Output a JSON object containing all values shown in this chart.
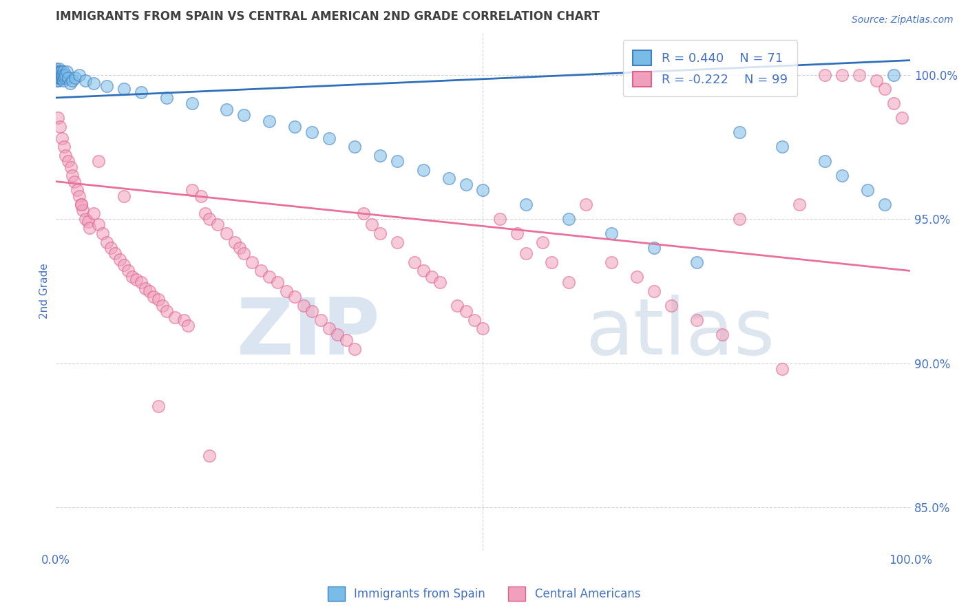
{
  "title": "IMMIGRANTS FROM SPAIN VS CENTRAL AMERICAN 2ND GRADE CORRELATION CHART",
  "source_text": "Source: ZipAtlas.com",
  "ylabel": "2nd Grade",
  "watermark_zip": "ZIP",
  "watermark_atlas": "atlas",
  "xmin": 0.0,
  "xmax": 100.0,
  "ymin": 83.5,
  "ymax": 101.5,
  "yticks": [
    85.0,
    90.0,
    95.0,
    100.0
  ],
  "ytick_labels": [
    "85.0%",
    "90.0%",
    "95.0%",
    "100.0%"
  ],
  "R_blue": 0.44,
  "N_blue": 71,
  "R_pink": -0.222,
  "N_pink": 99,
  "blue_color": "#7abce8",
  "pink_color": "#f0a0bb",
  "blue_edge_color": "#4080c0",
  "pink_edge_color": "#e06090",
  "blue_line_color": "#3070b8",
  "pink_line_color": "#e8709a",
  "axis_color": "#4472c4",
  "grid_color": "#c8c8c8",
  "title_color": "#404040",
  "background_color": "#ffffff",
  "legend_label_blue": "Immigrants from Spain",
  "legend_label_pink": "Central Americans",
  "blue_scatter_x": [
    0.05,
    0.08,
    0.1,
    0.12,
    0.15,
    0.18,
    0.2,
    0.22,
    0.25,
    0.28,
    0.3,
    0.33,
    0.35,
    0.38,
    0.4,
    0.42,
    0.45,
    0.48,
    0.5,
    0.52,
    0.55,
    0.58,
    0.6,
    0.65,
    0.7,
    0.75,
    0.8,
    0.85,
    0.9,
    0.95,
    1.0,
    1.1,
    1.2,
    1.3,
    1.5,
    1.7,
    2.0,
    2.3,
    2.8,
    3.5,
    4.5,
    6.0,
    8.0,
    10.0,
    13.0,
    16.0,
    20.0,
    22.0,
    25.0,
    28.0,
    30.0,
    32.0,
    35.0,
    38.0,
    40.0,
    43.0,
    46.0,
    48.0,
    50.0,
    55.0,
    60.0,
    65.0,
    70.0,
    75.0,
    80.0,
    85.0,
    90.0,
    92.0,
    95.0,
    97.0,
    98.0
  ],
  "blue_scatter_y": [
    100.0,
    100.1,
    99.9,
    100.2,
    100.0,
    99.8,
    100.1,
    99.9,
    100.0,
    100.0,
    99.9,
    100.1,
    100.0,
    99.8,
    100.0,
    100.2,
    99.9,
    100.1,
    100.0,
    99.9,
    100.0,
    100.1,
    99.9,
    100.0,
    100.1,
    99.9,
    100.0,
    100.0,
    99.8,
    100.1,
    100.0,
    99.9,
    100.0,
    100.1,
    99.9,
    99.7,
    99.8,
    99.9,
    100.0,
    99.8,
    99.7,
    99.6,
    99.5,
    99.4,
    99.2,
    99.0,
    98.8,
    98.6,
    98.4,
    98.2,
    98.0,
    97.8,
    97.5,
    97.2,
    97.0,
    96.7,
    96.4,
    96.2,
    96.0,
    95.5,
    95.0,
    94.5,
    94.0,
    93.5,
    98.0,
    97.5,
    97.0,
    96.5,
    96.0,
    95.5,
    100.0
  ],
  "pink_scatter_x": [
    0.3,
    0.5,
    0.8,
    1.0,
    1.2,
    1.5,
    1.8,
    2.0,
    2.2,
    2.5,
    2.8,
    3.0,
    3.2,
    3.5,
    3.8,
    4.0,
    4.5,
    5.0,
    5.5,
    6.0,
    6.5,
    7.0,
    7.5,
    8.0,
    8.5,
    9.0,
    9.5,
    10.0,
    10.5,
    11.0,
    11.5,
    12.0,
    12.5,
    13.0,
    14.0,
    15.0,
    15.5,
    16.0,
    17.0,
    17.5,
    18.0,
    19.0,
    20.0,
    21.0,
    21.5,
    22.0,
    23.0,
    24.0,
    25.0,
    26.0,
    27.0,
    28.0,
    29.0,
    30.0,
    31.0,
    32.0,
    33.0,
    34.0,
    35.0,
    36.0,
    37.0,
    38.0,
    40.0,
    42.0,
    43.0,
    44.0,
    45.0,
    47.0,
    48.0,
    49.0,
    50.0,
    52.0,
    54.0,
    55.0,
    57.0,
    58.0,
    60.0,
    62.0,
    65.0,
    68.0,
    70.0,
    72.0,
    75.0,
    78.0,
    80.0,
    85.0,
    87.0,
    90.0,
    92.0,
    94.0,
    96.0,
    97.0,
    98.0,
    99.0,
    3.0,
    5.0,
    8.0,
    12.0,
    18.0
  ],
  "pink_scatter_y": [
    98.5,
    98.2,
    97.8,
    97.5,
    97.2,
    97.0,
    96.8,
    96.5,
    96.3,
    96.0,
    95.8,
    95.5,
    95.3,
    95.0,
    94.9,
    94.7,
    95.2,
    94.8,
    94.5,
    94.2,
    94.0,
    93.8,
    93.6,
    93.4,
    93.2,
    93.0,
    92.9,
    92.8,
    92.6,
    92.5,
    92.3,
    92.2,
    92.0,
    91.8,
    91.6,
    91.5,
    91.3,
    96.0,
    95.8,
    95.2,
    95.0,
    94.8,
    94.5,
    94.2,
    94.0,
    93.8,
    93.5,
    93.2,
    93.0,
    92.8,
    92.5,
    92.3,
    92.0,
    91.8,
    91.5,
    91.2,
    91.0,
    90.8,
    90.5,
    95.2,
    94.8,
    94.5,
    94.2,
    93.5,
    93.2,
    93.0,
    92.8,
    92.0,
    91.8,
    91.5,
    91.2,
    95.0,
    94.5,
    93.8,
    94.2,
    93.5,
    92.8,
    95.5,
    93.5,
    93.0,
    92.5,
    92.0,
    91.5,
    91.0,
    95.0,
    89.8,
    95.5,
    100.0,
    100.0,
    100.0,
    99.8,
    99.5,
    99.0,
    98.5,
    95.5,
    97.0,
    95.8,
    88.5,
    86.8
  ],
  "blue_trend_x": [
    0.0,
    100.0
  ],
  "blue_trend_y": [
    99.2,
    100.5
  ],
  "pink_trend_x": [
    0.0,
    100.0
  ],
  "pink_trend_y": [
    96.3,
    93.2
  ]
}
